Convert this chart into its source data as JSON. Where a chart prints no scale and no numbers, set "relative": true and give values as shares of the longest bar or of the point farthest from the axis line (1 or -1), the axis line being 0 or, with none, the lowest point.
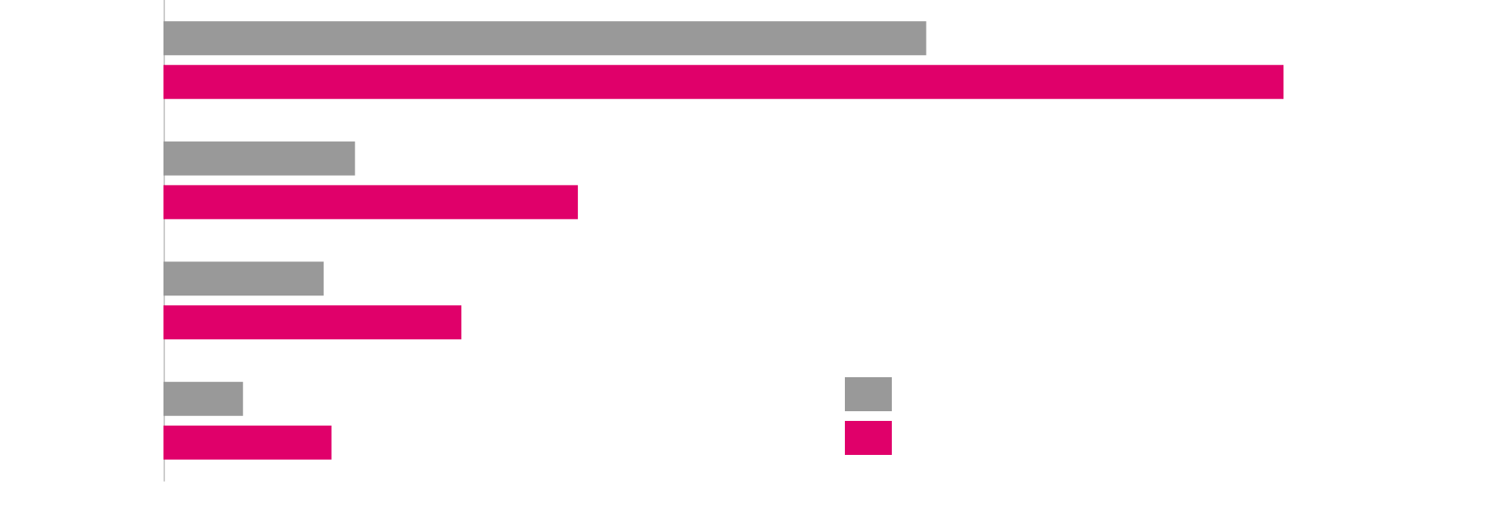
{
  "chart_data": {
    "type": "bar",
    "orientation": "horizontal",
    "relative": true,
    "categories": [
      null,
      null,
      null,
      null
    ],
    "series": [
      {
        "color": "#999999",
        "values": [
          0.681,
          0.171,
          0.143,
          0.071
        ]
      },
      {
        "color": "#e0006a",
        "values": [
          1,
          0.37,
          0.266,
          0.15
        ]
      }
    ]
  }
}
